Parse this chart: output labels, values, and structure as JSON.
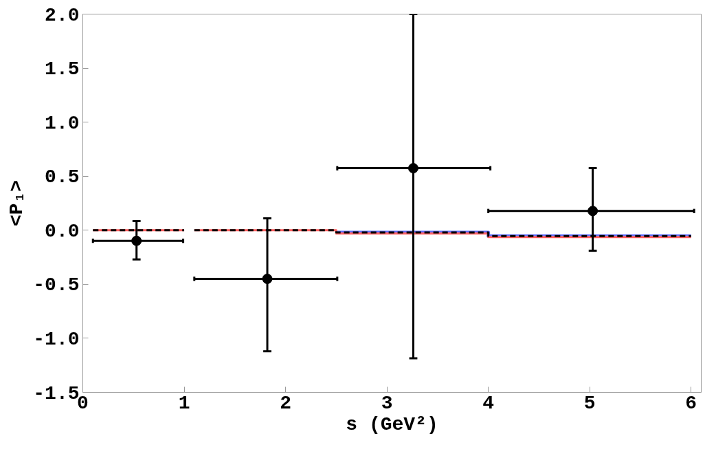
{
  "chart_data": {
    "type": "scatter",
    "xlabel": "s (GeV²)",
    "ylabel": "<P₁>",
    "xlim": [
      0,
      6.1
    ],
    "ylim": [
      -1.5,
      2.0
    ],
    "xticks": [
      0,
      1,
      2,
      3,
      4,
      5,
      6
    ],
    "yticks": [
      {
        "value": -1.5,
        "label": "-1.5"
      },
      {
        "value": -1,
        "label": "-1.0"
      },
      {
        "value": -0.5,
        "label": "-0.5"
      },
      {
        "value": 0,
        "label": "0.0"
      },
      {
        "value": 0.5,
        "label": "0.5"
      },
      {
        "value": 1,
        "label": "1.0"
      },
      {
        "value": 1.5,
        "label": "1.5"
      },
      {
        "value": 2,
        "label": "2.0"
      }
    ],
    "grid": false,
    "series": [
      {
        "type": "line",
        "color": "#6070ff",
        "line_style": "solid",
        "x": [
          2.5,
          4.0,
          4.0,
          6.0
        ],
        "values": [
          -0.02,
          -0.02,
          -0.054,
          -0.054
        ]
      },
      {
        "type": "line",
        "color": "#ff6060",
        "line_style": "solid",
        "x": [
          0.1,
          1.0,
          null,
          1.1,
          2.5,
          2.5,
          4.0,
          4.0,
          6.0
        ],
        "values": [
          0,
          0,
          null,
          0,
          0,
          -0.03,
          -0.03,
          -0.064,
          -0.064
        ]
      },
      {
        "type": "line",
        "color": "#000000",
        "line_style": "dashed",
        "x": [
          0.1,
          1.0,
          null,
          1.1,
          2.5,
          2.5,
          4.0,
          4.0,
          6.0
        ],
        "values": [
          0,
          0,
          null,
          0,
          0,
          -0.02,
          -0.02,
          -0.054,
          -0.054
        ]
      },
      {
        "type": "scatter",
        "color": "#000000",
        "marker": "circle",
        "x": [
          0.53,
          1.82,
          3.26,
          5.03
        ],
        "values": [
          -0.098,
          -0.45,
          0.574,
          0.178
        ],
        "errors": [
          [
            -0.27,
            0.085
          ],
          [
            -1.12,
            0.11
          ],
          [
            -1.185,
            2.0
          ],
          [
            -0.19,
            0.574
          ]
        ],
        "xerrors": [
          [
            0.1,
            0.99
          ],
          [
            1.1,
            2.51
          ],
          [
            2.51,
            4.02
          ],
          [
            4.0,
            6.03
          ]
        ]
      }
    ]
  }
}
